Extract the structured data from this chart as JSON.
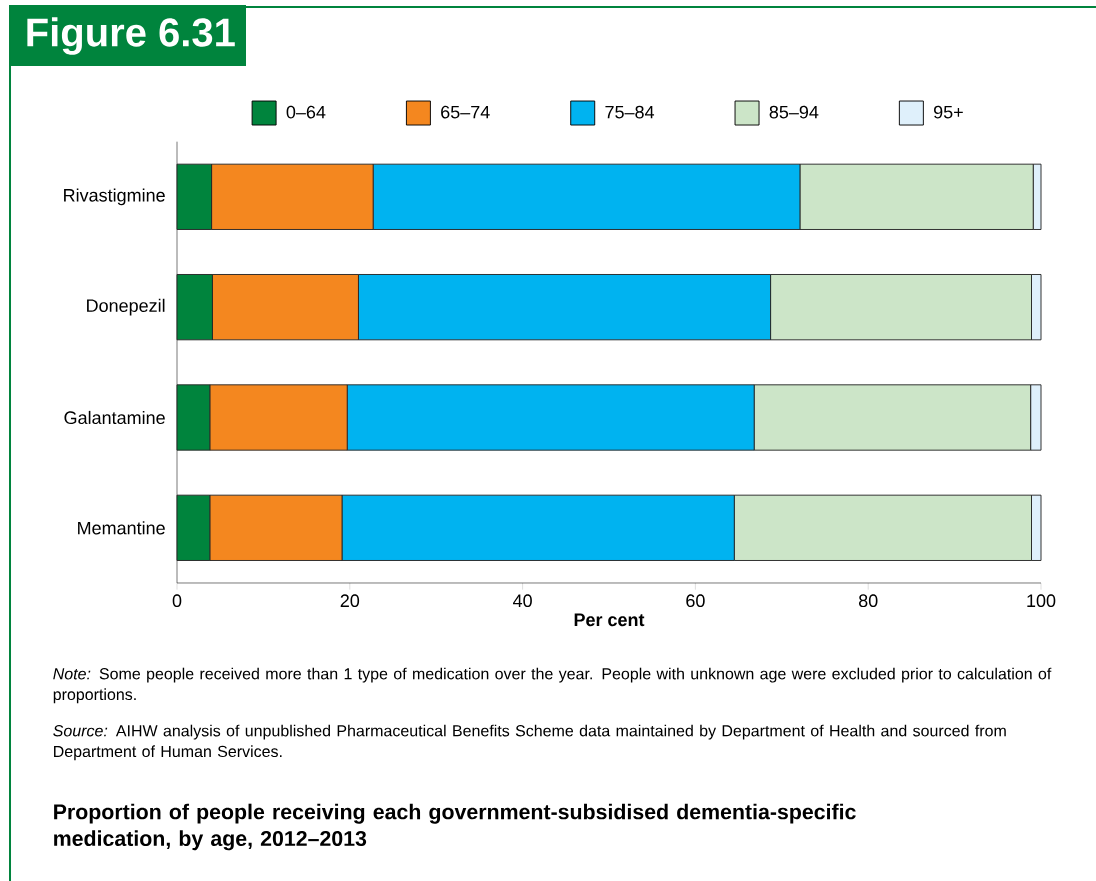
{
  "chart_data": {
    "type": "bar",
    "orientation": "horizontal",
    "stacked": true,
    "title": "Figure 6.31",
    "subtitle": "Proportion of people receiving each government-subsidised dementia-specific medication, by age, 2012–2013",
    "categories": [
      "Rivastigmine",
      "Donepezil",
      "Galantamine",
      "Memantine"
    ],
    "series": [
      {
        "name": "0–64",
        "color": "#00843d",
        "values": [
          4.0,
          4.1,
          3.8,
          3.8
        ]
      },
      {
        "name": "65–74",
        "color": "#f4871f",
        "values": [
          18.7,
          16.9,
          15.9,
          15.3
        ]
      },
      {
        "name": "75–84",
        "color": "#00b3f0",
        "values": [
          49.4,
          47.7,
          47.1,
          45.4
        ]
      },
      {
        "name": "85–94",
        "color": "#cce5c8",
        "values": [
          27.0,
          30.2,
          32.0,
          34.4
        ]
      },
      {
        "name": "95+",
        "color": "#dff0fb",
        "values": [
          0.9,
          1.1,
          1.2,
          1.1
        ]
      }
    ],
    "xlim": [
      0,
      100
    ],
    "xticks": [
      0,
      20,
      40,
      60,
      80,
      100
    ],
    "xlabel": "Per cent",
    "legend": "top",
    "grid": false,
    "annotations": [
      "*Note:* Some people received more than 1 type of medication over the year. People with unknown age were excluded prior to calculation of proportions.",
      "*Source:* AIHW analysis of unpublished Pharmaceutical Benefits Scheme data maintained by Department of Health and sourced from Department of Human Services."
    ]
  }
}
